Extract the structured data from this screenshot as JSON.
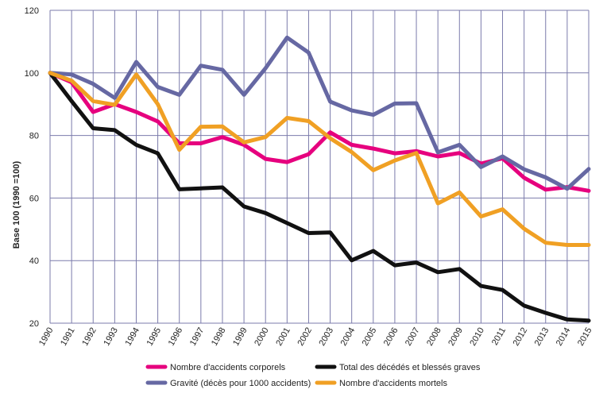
{
  "chart_data": {
    "type": "line",
    "title": "",
    "xlabel": "",
    "ylabel": "Base 100 (1990 =100)",
    "ylim": [
      20,
      120
    ],
    "yticks": [
      20,
      40,
      60,
      80,
      100,
      120
    ],
    "grid": true,
    "legend_position": "bottom",
    "x": [
      "1990",
      "1991",
      "1992",
      "1993",
      "1994",
      "1995",
      "1996",
      "1997",
      "1998",
      "1999",
      "2000",
      "2001",
      "2002",
      "2003",
      "2004",
      "2005",
      "2006",
      "2007",
      "2008",
      "2009",
      "2010",
      "2011",
      "2012",
      "2013",
      "2014",
      "2015"
    ],
    "series": [
      {
        "name": "Nombre d'accidents corporels",
        "color": "#e6007e",
        "values": [
          100,
          97,
          87.5,
          90,
          87.5,
          84.5,
          77.5,
          77.5,
          79.5,
          77,
          72.5,
          71.5,
          74,
          81,
          77,
          75.8,
          74.3,
          75,
          73.3,
          74.4,
          71,
          72.7,
          66.5,
          62.7,
          63.5,
          62.3
        ]
      },
      {
        "name": "Gravité (décès pour 1000 accidents)",
        "color": "#6668a3",
        "values": [
          100,
          99.5,
          96.5,
          92,
          103.5,
          95.5,
          93,
          102.3,
          101,
          93,
          101.5,
          111.3,
          106.5,
          90.8,
          88,
          86.6,
          90.2,
          90.3,
          74.6,
          77,
          69.9,
          73.3,
          69.2,
          66.6,
          63,
          69.3
        ]
      },
      {
        "name": "Total des décédés et blessés graves",
        "color": "#111111",
        "values": [
          100,
          91,
          82.3,
          81.7,
          77,
          74.3,
          62.8,
          63.1,
          63.4,
          57.3,
          55.2,
          52,
          48.8,
          49,
          40.1,
          43.1,
          38.5,
          39.4,
          36.3,
          37.3,
          31.9,
          30.6,
          25.6,
          23.3,
          21.2,
          20.8
        ]
      },
      {
        "name": "Nombre d'accidents mortels",
        "color": "#f0a024",
        "values": [
          100,
          97.5,
          91,
          89.8,
          99.5,
          90,
          75.4,
          82.8,
          82.9,
          77.8,
          79.5,
          85.6,
          84.6,
          79.1,
          74.7,
          68.9,
          72,
          74.4,
          58.3,
          61.8,
          54.1,
          56.4,
          50.2,
          45.7,
          45,
          45
        ]
      }
    ]
  }
}
